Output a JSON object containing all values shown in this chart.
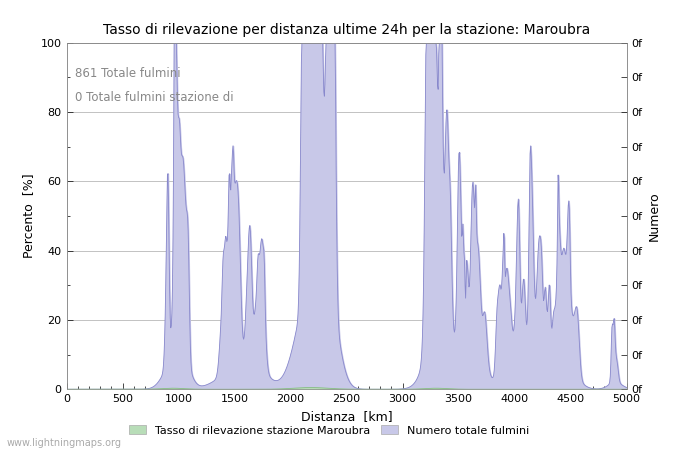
{
  "title": "Tasso di rilevazione per distanza ultime 24h per la stazione: Maroubra",
  "xlabel": "Distanza  [km]",
  "ylabel_left": "Percento  [%]",
  "ylabel_right": "Numero",
  "annotation_line1": "861 Totale fulmini",
  "annotation_line2": "0 Totale fulmini stazione di",
  "legend_label1": "Tasso di rilevazione stazione Maroubra",
  "legend_label2": "Numero totale fulmini",
  "watermark": "www.lightningmaps.org",
  "xlim": [
    0,
    5000
  ],
  "ylim_left": [
    0,
    100
  ],
  "right_axis_labels": [
    "0f",
    "0f",
    "0f",
    "0f",
    "0f",
    "0f",
    "0f",
    "0f",
    "0f",
    "0f",
    "0f"
  ],
  "right_axis_ticks": [
    0,
    10,
    20,
    30,
    40,
    50,
    60,
    70,
    80,
    90,
    100
  ],
  "color_green": "#b8ddb8",
  "color_blue": "#c8c8e8",
  "line_color_blue": "#8888cc",
  "line_color_green": "#88bb88",
  "background_color": "#ffffff",
  "grid_color": "#aaaaaa"
}
